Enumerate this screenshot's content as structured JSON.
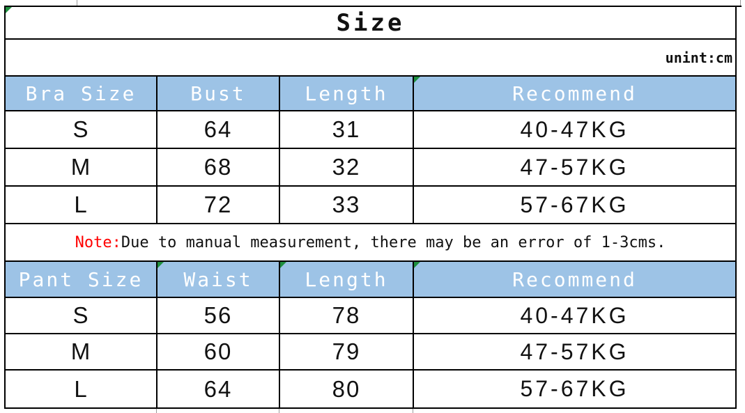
{
  "title": "Size",
  "unit_label": "unint:cm",
  "note": {
    "prefix": "Note:",
    "text": "Due to manual measurement, there may be an error of 1-3cms."
  },
  "bra_table": {
    "headers": [
      "Bra Size",
      "Bust",
      "Length",
      "Recommend"
    ],
    "rows": [
      {
        "size": "S",
        "bust": "64",
        "length": "31",
        "recommend": "40-47KG"
      },
      {
        "size": "M",
        "bust": "68",
        "length": "32",
        "recommend": "47-57KG"
      },
      {
        "size": "L",
        "bust": "72",
        "length": "33",
        "recommend": "57-67KG"
      }
    ]
  },
  "pant_table": {
    "headers": [
      "Pant Size",
      "Waist",
      "Length",
      "Recommend"
    ],
    "rows": [
      {
        "size": "S",
        "waist": "56",
        "length": "78",
        "recommend": "40-47KG"
      },
      {
        "size": "M",
        "waist": "60",
        "length": "79",
        "recommend": "47-57KG"
      },
      {
        "size": "L",
        "waist": "64",
        "length": "80",
        "recommend": "57-67KG"
      }
    ]
  },
  "colors": {
    "header_bg": "#9DC3E6",
    "header_text": "#FFFFFF",
    "grid": "#000000",
    "note_prefix": "#FF0000",
    "marker_green": "#1E8E3E"
  }
}
